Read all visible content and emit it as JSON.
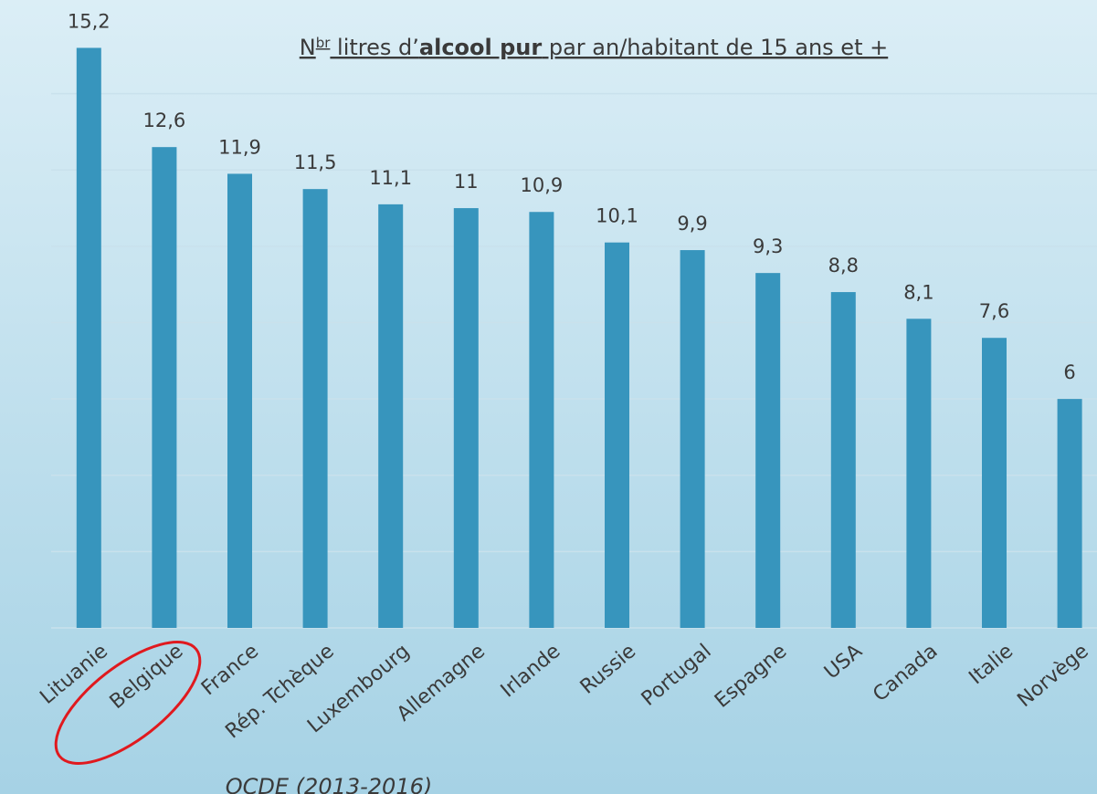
{
  "chart_data": {
    "type": "bar",
    "title_parts": [
      "N",
      "br",
      " litres d’",
      "alcool pur",
      " par an/habitant de 15 ans et +"
    ],
    "source": "OCDE (2013-2016)",
    "categories": [
      "Lituanie",
      "Belgique",
      "France",
      "Rép. Tchèque",
      "Luxembourg",
      "Allemagne",
      "Irlande",
      "Russie",
      "Portugal",
      "Espagne",
      "USA",
      "Canada",
      "Italie",
      "Norvège"
    ],
    "values": [
      15.2,
      12.6,
      11.9,
      11.5,
      11.1,
      11,
      10.9,
      10.1,
      9.9,
      9.3,
      8.8,
      8.1,
      7.6,
      6
    ],
    "value_labels": [
      "15,2",
      "12,6",
      "11,9",
      "11,5",
      "11,1",
      "11",
      "10,9",
      "10,1",
      "9,9",
      "9,3",
      "8,8",
      "8,1",
      "7,6",
      "6"
    ],
    "color": "#3795bd",
    "ylim": [
      0,
      16
    ],
    "yticks": [
      0,
      2,
      4,
      6,
      8,
      10,
      12,
      14
    ],
    "grid": true
  }
}
